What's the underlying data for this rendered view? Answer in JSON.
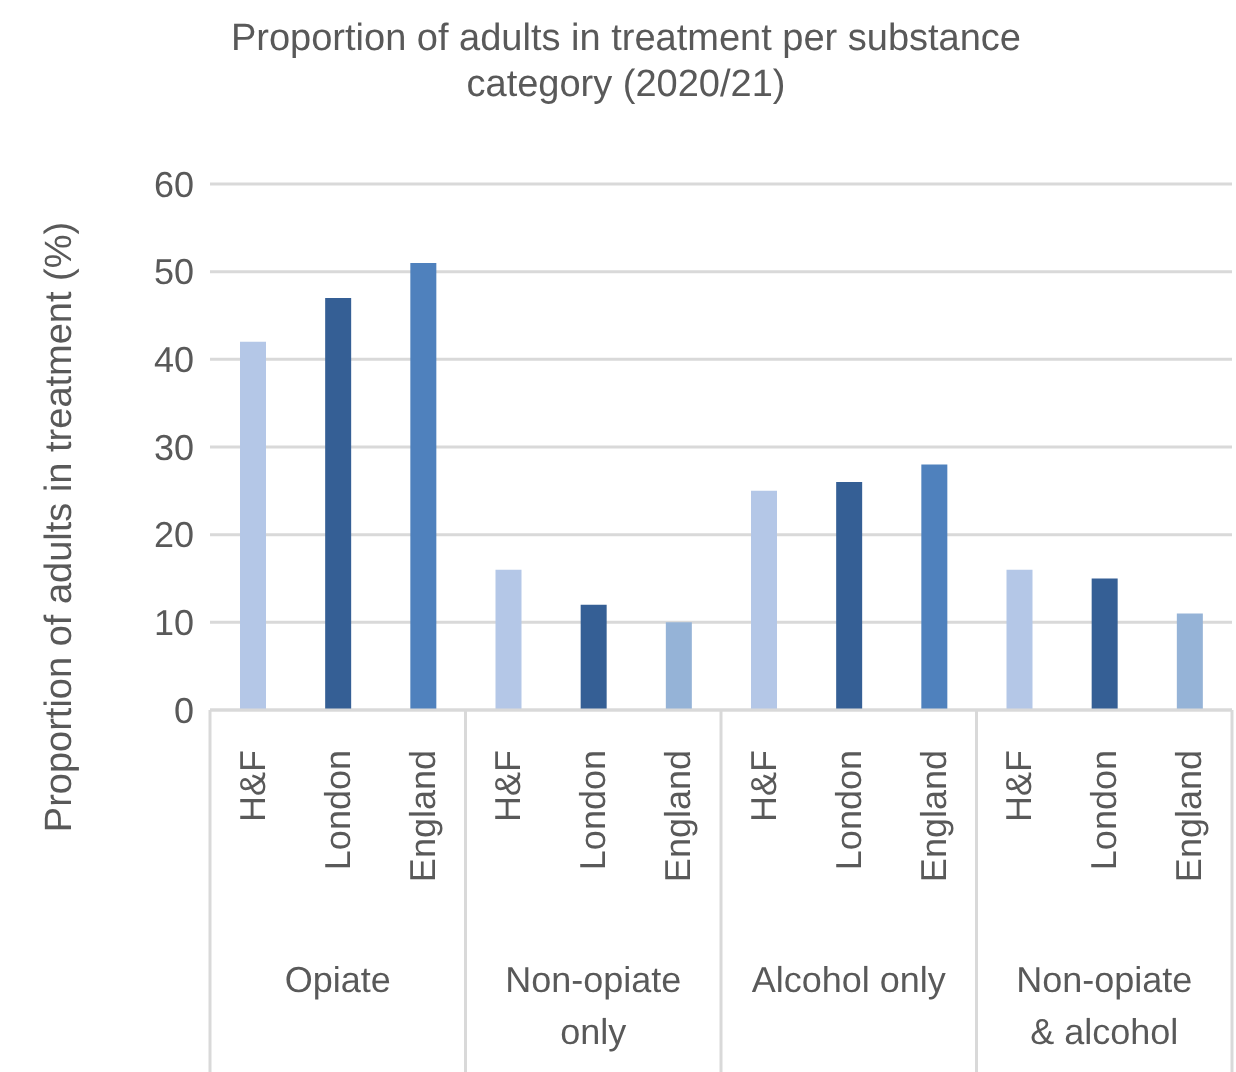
{
  "chart_data": {
    "type": "bar",
    "title": "Proportion of adults in treatment per substance category (2020/21)",
    "ylabel": "Proportion of adults in treatment (%)",
    "categories": [
      "H&F",
      "London",
      "England",
      "H&F",
      "London",
      "England",
      "H&F",
      "London",
      "England",
      "H&F",
      "London",
      "England"
    ],
    "values": [
      42,
      47,
      51,
      16,
      12,
      10,
      25,
      26,
      28,
      16,
      15,
      11
    ],
    "colors": [
      "#b4c7e7",
      "#355f95",
      "#4f81bd",
      "#b4c7e7",
      "#355f95",
      "#95b3d7",
      "#b4c7e7",
      "#355f95",
      "#4f81bd",
      "#b4c7e7",
      "#355f95",
      "#95b3d7"
    ],
    "annotations": [
      "Opiate",
      "Non-opiate only",
      "Alcohol only",
      "Non-opiate & alcohol"
    ],
    "ylim": [
      0,
      60
    ],
    "yticks": [
      0,
      10,
      20,
      30,
      40,
      50,
      60
    ],
    "grid": "y"
  }
}
